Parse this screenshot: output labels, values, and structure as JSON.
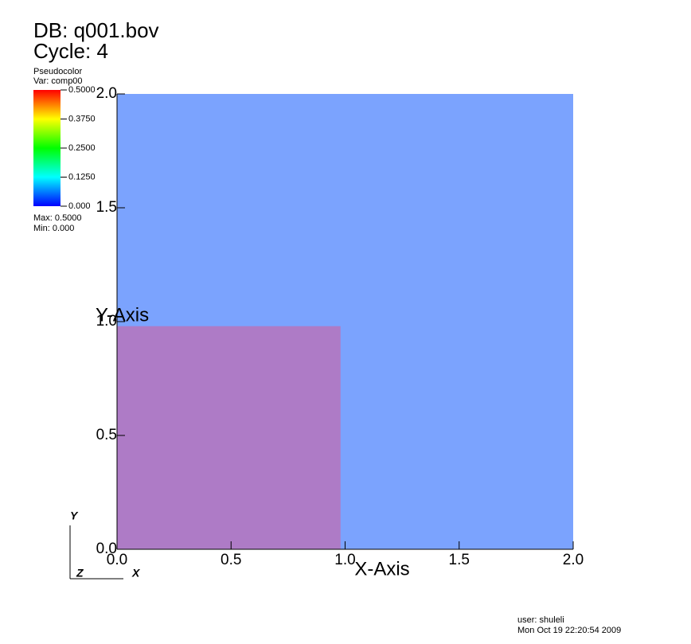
{
  "header": {
    "db": "DB: q001.bov",
    "cycle": "Cycle: 4"
  },
  "legend": {
    "plot": "Pseudocolor",
    "var": "Var: comp00",
    "range": [
      0,
      0.5
    ],
    "ticks": [
      {
        "value": 0.5,
        "label": "0.5000"
      },
      {
        "value": 0.375,
        "label": "0.3750"
      },
      {
        "value": 0.25,
        "label": "0.2500"
      },
      {
        "value": 0.125,
        "label": "0.1250"
      },
      {
        "value": 0,
        "label": "0.000"
      }
    ],
    "max": "Max: 0.5000",
    "min": "Min: 0.000"
  },
  "chart_data": {
    "type": "pseudocolor",
    "xlabel": "X-Axis",
    "ylabel": "Y-Axis",
    "xlim": [
      0,
      2
    ],
    "ylim": [
      0,
      2
    ],
    "xticks": [
      {
        "value": 0,
        "label": "0.0"
      },
      0.5,
      {
        "value": 1,
        "label": "1.0"
      },
      1.5,
      {
        "value": 2,
        "label": "2.0"
      }
    ],
    "yticks": [
      {
        "value": 0,
        "label": "0.0"
      },
      0.5,
      {
        "value": 1,
        "label": "1.0"
      },
      1.5,
      {
        "value": 2,
        "label": "2.0"
      }
    ],
    "regions": [
      {
        "x": [
          0,
          2
        ],
        "y": [
          0,
          2
        ],
        "color": "#7ba3fe"
      },
      {
        "x": [
          0,
          0.98
        ],
        "y": [
          0,
          0.98
        ],
        "color": "#ae7bc6"
      }
    ]
  },
  "triad": {
    "y": "Y",
    "z": "Z",
    "x": "X"
  },
  "footer": {
    "user": "user: shuleli",
    "date": "Mon Oct 19 22:20:54 2009"
  }
}
